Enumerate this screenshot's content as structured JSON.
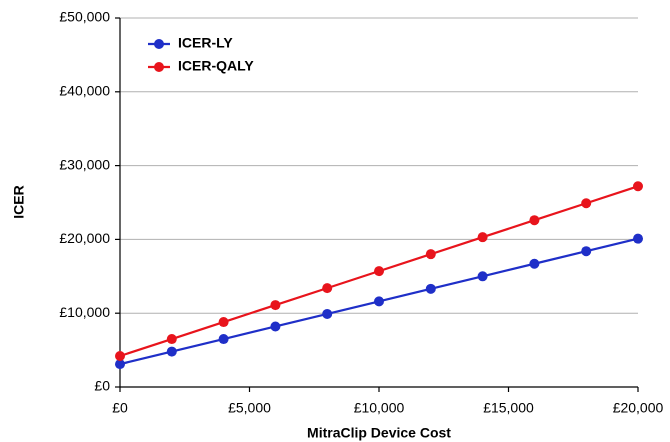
{
  "chart_data": {
    "type": "line",
    "x_label": "MitraClip Device Cost",
    "y_label": "ICER",
    "x": [
      0,
      2000,
      4000,
      6000,
      8000,
      10000,
      12000,
      14000,
      16000,
      18000,
      20000
    ],
    "series": [
      {
        "name": "ICER-LY",
        "color": "#1f2fc8",
        "values": [
          3100,
          4800,
          6500,
          8200,
          9900,
          11600,
          13300,
          15000,
          16700,
          18400,
          20100
        ]
      },
      {
        "name": "ICER-QALY",
        "color": "#e8141c",
        "values": [
          4200,
          6500,
          8800,
          11100,
          13400,
          15700,
          18000,
          20300,
          22600,
          24900,
          27200
        ]
      }
    ],
    "xlim": [
      0,
      20000
    ],
    "xticks": [
      {
        "value": 0,
        "label": "£0"
      },
      {
        "value": 5000,
        "label": "£5,000"
      },
      {
        "value": 10000,
        "label": "£10,000"
      },
      {
        "value": 15000,
        "label": "£15,000"
      },
      {
        "value": 20000,
        "label": "£20,000"
      }
    ],
    "ylim": [
      0,
      50000
    ],
    "yticks": [
      {
        "value": 0,
        "label": "£0"
      },
      {
        "value": 10000,
        "label": "£10,000"
      },
      {
        "value": 20000,
        "label": "£20,000"
      },
      {
        "value": 30000,
        "label": "£30,000"
      },
      {
        "value": 40000,
        "label": "£40,000"
      },
      {
        "value": 50000,
        "label": "£50,000"
      }
    ],
    "grid": true,
    "legend": "upper-left"
  }
}
